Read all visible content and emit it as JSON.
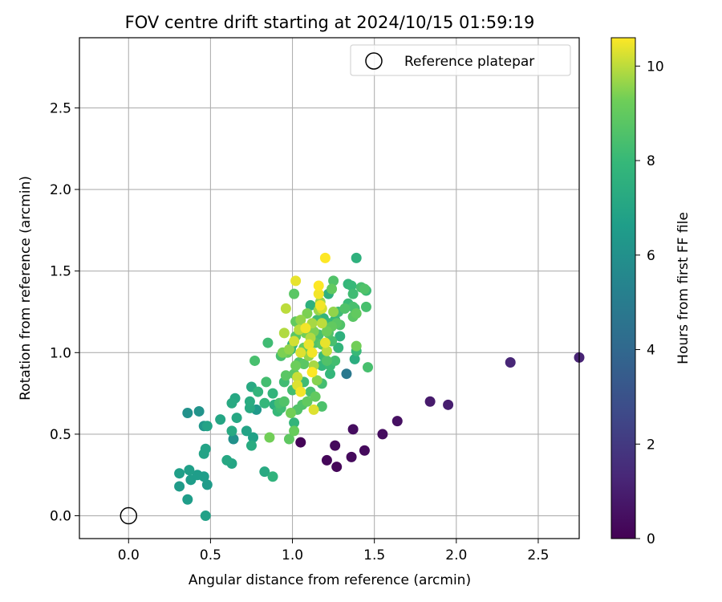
{
  "chart_data": {
    "type": "scatter",
    "title": "FOV centre drift starting at 2024/10/15 01:59:19",
    "xlabel": "Angular distance from reference (arcmin)",
    "ylabel": "Rotation from reference (arcmin)",
    "xlim": [
      -0.3,
      2.75
    ],
    "ylim": [
      -0.14,
      2.93
    ],
    "xticks": [
      0.0,
      0.5,
      1.0,
      1.5,
      2.0,
      2.5
    ],
    "xtick_labels": [
      "0.0",
      "0.5",
      "1.0",
      "1.5",
      "2.0",
      "2.5"
    ],
    "yticks": [
      0.0,
      0.5,
      1.0,
      1.5,
      2.0,
      2.5
    ],
    "ytick_labels": [
      "0.0",
      "0.5",
      "1.0",
      "1.5",
      "2.0",
      "2.5"
    ],
    "grid": true,
    "legend": {
      "location": "top-right",
      "entries": [
        "Reference platepar"
      ]
    },
    "reference_point": {
      "x": 0.0,
      "y": 0.0
    },
    "colorbar": {
      "label": "Hours from first FF file",
      "colormap": "viridis",
      "range": [
        0,
        10.6
      ],
      "ticks": [
        0,
        2,
        4,
        6,
        8,
        10
      ],
      "tick_labels": [
        "0",
        "2",
        "4",
        "6",
        "8",
        "10"
      ]
    },
    "points": [
      [
        2.75,
        0.97,
        1.2
      ],
      [
        2.33,
        0.94,
        1.3
      ],
      [
        1.95,
        0.68,
        1.0
      ],
      [
        1.84,
        0.7,
        0.9
      ],
      [
        1.64,
        0.58,
        0.5
      ],
      [
        1.55,
        0.5,
        0.4
      ],
      [
        1.44,
        0.4,
        0.3
      ],
      [
        1.37,
        0.53,
        0.4
      ],
      [
        1.36,
        0.36,
        0.3
      ],
      [
        1.27,
        0.3,
        0.2
      ],
      [
        1.26,
        0.43,
        0.3
      ],
      [
        1.21,
        0.34,
        0.2
      ],
      [
        1.05,
        0.45,
        0.1
      ],
      [
        1.33,
        0.87,
        4.8
      ],
      [
        0.47,
        0.0,
        6.8
      ],
      [
        0.36,
        0.1,
        6.6
      ],
      [
        0.31,
        0.18,
        6.5
      ],
      [
        0.38,
        0.22,
        6.6
      ],
      [
        0.48,
        0.19,
        6.5
      ],
      [
        0.46,
        0.24,
        6.6
      ],
      [
        0.31,
        0.26,
        6.7
      ],
      [
        0.37,
        0.28,
        6.7
      ],
      [
        0.42,
        0.25,
        6.6
      ],
      [
        0.36,
        0.63,
        6.0
      ],
      [
        0.43,
        0.64,
        6.1
      ],
      [
        0.46,
        0.55,
        6.3
      ],
      [
        0.48,
        0.55,
        6.9
      ],
      [
        0.46,
        0.38,
        6.9
      ],
      [
        0.47,
        0.41,
        6.9
      ],
      [
        0.56,
        0.59,
        7.0
      ],
      [
        0.6,
        0.34,
        7.1
      ],
      [
        0.63,
        0.32,
        7.0
      ],
      [
        0.64,
        0.47,
        6.0
      ],
      [
        0.63,
        0.52,
        7.2
      ],
      [
        0.66,
        0.6,
        7.1
      ],
      [
        0.65,
        0.72,
        7.1
      ],
      [
        0.63,
        0.69,
        7.2
      ],
      [
        0.72,
        0.52,
        6.9
      ],
      [
        0.74,
        0.66,
        7.2
      ],
      [
        0.75,
        0.43,
        7.3
      ],
      [
        0.74,
        0.7,
        7.3
      ],
      [
        0.75,
        0.79,
        7.2
      ],
      [
        0.76,
        0.48,
        6.8
      ],
      [
        0.78,
        0.65,
        6.4
      ],
      [
        0.79,
        0.76,
        7.8
      ],
      [
        0.77,
        0.95,
        8.4
      ],
      [
        0.83,
        0.27,
        7.2
      ],
      [
        0.86,
        0.48,
        9.3
      ],
      [
        0.88,
        0.24,
        7.7
      ],
      [
        0.83,
        0.69,
        7.9
      ],
      [
        0.84,
        0.82,
        8.3
      ],
      [
        0.85,
        1.06,
        8.2
      ],
      [
        0.88,
        0.75,
        7.8
      ],
      [
        0.89,
        0.68,
        7.4
      ],
      [
        0.91,
        0.64,
        8.0
      ],
      [
        0.93,
        0.66,
        8.2
      ],
      [
        0.92,
        0.69,
        8.4
      ],
      [
        0.95,
        0.7,
        8.6
      ],
      [
        0.95,
        0.82,
        8.2
      ],
      [
        0.96,
        0.86,
        8.8
      ],
      [
        0.93,
        0.98,
        8.4
      ],
      [
        0.94,
        1.0,
        9.4
      ],
      [
        0.95,
        1.12,
        9.9
      ],
      [
        0.96,
        1.27,
        10.0
      ],
      [
        0.97,
        1.0,
        9.1
      ],
      [
        0.98,
        0.47,
        8.9
      ],
      [
        0.99,
        0.63,
        9.3
      ],
      [
        1.0,
        0.77,
        8.3
      ],
      [
        0.99,
        1.02,
        8.0
      ],
      [
        1.0,
        1.05,
        7.6
      ],
      [
        0.98,
        1.02,
        9.6
      ],
      [
        1.01,
        0.52,
        9.1
      ],
      [
        1.01,
        0.57,
        7.8
      ],
      [
        1.01,
        0.87,
        8.8
      ],
      [
        1.02,
        0.92,
        9.2
      ],
      [
        1.01,
        1.07,
        10.2
      ],
      [
        1.02,
        1.1,
        8.8
      ],
      [
        1.02,
        1.19,
        9.0
      ],
      [
        1.01,
        1.36,
        8.8
      ],
      [
        1.02,
        1.44,
        10.4
      ],
      [
        1.03,
        0.65,
        8.6
      ],
      [
        1.03,
        0.8,
        10.3
      ],
      [
        1.03,
        0.85,
        10.1
      ],
      [
        1.04,
        0.94,
        8.6
      ],
      [
        1.04,
        1.14,
        10.0
      ],
      [
        1.05,
        1.0,
        10.3
      ],
      [
        1.05,
        0.76,
        10.5
      ],
      [
        1.05,
        1.2,
        9.6
      ],
      [
        1.06,
        0.68,
        8.6
      ],
      [
        1.07,
        0.82,
        8.2
      ],
      [
        1.07,
        0.93,
        8.8
      ],
      [
        1.07,
        1.03,
        9.1
      ],
      [
        1.08,
        1.12,
        9.3
      ],
      [
        1.08,
        1.15,
        10.5
      ],
      [
        1.09,
        1.24,
        9.4
      ],
      [
        1.09,
        0.7,
        9.0
      ],
      [
        1.1,
        1.05,
        10.4
      ],
      [
        1.1,
        0.98,
        9.6
      ],
      [
        1.11,
        1.09,
        9.9
      ],
      [
        1.11,
        0.76,
        8.4
      ],
      [
        1.11,
        1.29,
        7.6
      ],
      [
        1.12,
        1.18,
        9.8
      ],
      [
        1.12,
        1.0,
        10.5
      ],
      [
        1.12,
        0.88,
        10.6
      ],
      [
        1.13,
        0.92,
        9.8
      ],
      [
        1.13,
        1.13,
        9.4
      ],
      [
        1.13,
        0.65,
        10.3
      ],
      [
        1.14,
        0.73,
        9.0
      ],
      [
        1.14,
        1.06,
        8.6
      ],
      [
        1.15,
        0.83,
        9.5
      ],
      [
        1.15,
        1.2,
        8.2
      ],
      [
        1.16,
        1.26,
        9.7
      ],
      [
        1.16,
        1.11,
        8.4
      ],
      [
        1.16,
        1.36,
        10.5
      ],
      [
        1.16,
        1.41,
        10.6
      ],
      [
        1.17,
        1.29,
        10.5
      ],
      [
        1.17,
        1.31,
        9.7
      ],
      [
        1.18,
        0.81,
        8.3
      ],
      [
        1.18,
        0.92,
        7.9
      ],
      [
        1.18,
        1.05,
        8.8
      ],
      [
        1.18,
        1.18,
        10.0
      ],
      [
        1.18,
        1.27,
        10.2
      ],
      [
        1.18,
        0.67,
        8.5
      ],
      [
        1.19,
        1.21,
        7.8
      ],
      [
        1.19,
        0.98,
        8.1
      ],
      [
        1.2,
        1.58,
        10.7
      ],
      [
        1.2,
        1.06,
        10.4
      ],
      [
        1.21,
        1.13,
        9.2
      ],
      [
        1.21,
        1.01,
        10.0
      ],
      [
        1.21,
        0.95,
        8.6
      ],
      [
        1.22,
        1.12,
        8.6
      ],
      [
        1.22,
        1.36,
        7.6
      ],
      [
        1.22,
        1.18,
        8.0
      ],
      [
        1.23,
        0.92,
        8.1
      ],
      [
        1.23,
        0.87,
        7.9
      ],
      [
        1.24,
        1.16,
        9.0
      ],
      [
        1.24,
        1.39,
        9.0
      ],
      [
        1.24,
        1.07,
        8.4
      ],
      [
        1.25,
        1.44,
        8.6
      ],
      [
        1.25,
        1.25,
        9.6
      ],
      [
        1.26,
        1.2,
        8.0
      ],
      [
        1.26,
        0.95,
        8.3
      ],
      [
        1.27,
        1.18,
        8.8
      ],
      [
        1.28,
        1.03,
        7.8
      ],
      [
        1.28,
        1.25,
        8.2
      ],
      [
        1.29,
        1.1,
        7.6
      ],
      [
        1.29,
        1.17,
        8.6
      ],
      [
        1.32,
        1.27,
        8.6
      ],
      [
        1.34,
        1.42,
        7.9
      ],
      [
        1.34,
        1.3,
        8.1
      ],
      [
        1.36,
        1.41,
        8.0
      ],
      [
        1.37,
        1.22,
        8.8
      ],
      [
        1.37,
        1.28,
        8.4
      ],
      [
        1.37,
        1.36,
        8.2
      ],
      [
        1.38,
        0.96,
        7.4
      ],
      [
        1.39,
        1.58,
        7.6
      ],
      [
        1.39,
        1.04,
        9.3
      ],
      [
        1.39,
        1.01,
        8.0
      ],
      [
        1.39,
        1.24,
        9.0
      ],
      [
        1.38,
        1.27,
        8.2
      ],
      [
        1.42,
        1.4,
        8.4
      ],
      [
        1.44,
        1.39,
        8.6
      ],
      [
        1.45,
        1.38,
        8.1
      ],
      [
        1.45,
        1.28,
        8.4
      ],
      [
        1.46,
        0.91,
        8.4
      ]
    ]
  }
}
